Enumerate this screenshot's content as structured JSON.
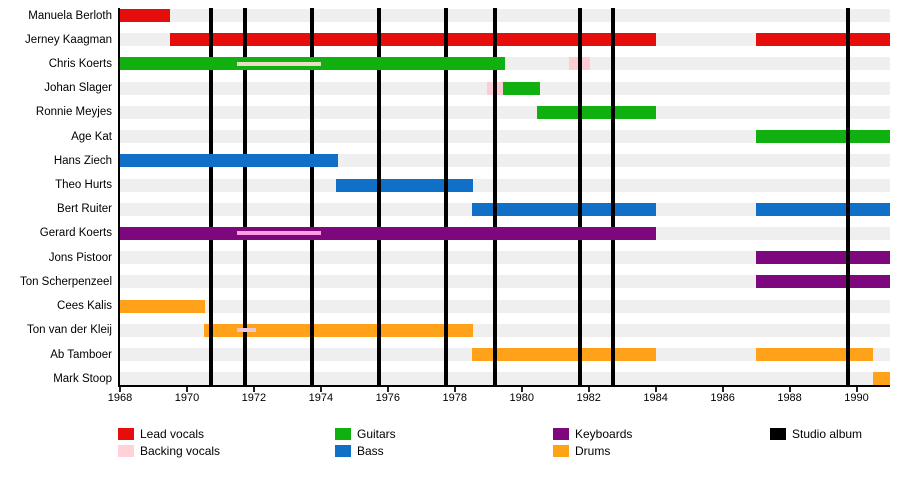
{
  "chart_data": {
    "type": "bar",
    "subtype": "horizontal-timeline-gantt",
    "title": "",
    "grid": "off",
    "legend_position": "bottom",
    "axis": {
      "start_year": 1968,
      "end_year": 1991,
      "tick_years": [
        1968,
        1970,
        1972,
        1974,
        1976,
        1978,
        1980,
        1982,
        1984,
        1986,
        1988,
        1990
      ]
    },
    "colors": {
      "lead": "#e60d0d",
      "backing": "#ffccd6",
      "guitars": "#0fb00f",
      "bass": "#1070c8",
      "keyboards": "#7d077d",
      "drums": "#ffa219",
      "album": "#000000",
      "row_band": "#efefef"
    },
    "members": [
      {
        "name": "Manuela Berloth",
        "bars": [
          {
            "role": "lead",
            "start": 1968,
            "end": 1969.5
          }
        ],
        "stripes": []
      },
      {
        "name": "Jerney Kaagman",
        "bars": [
          {
            "role": "lead",
            "start": 1969.5,
            "end": 1984
          },
          {
            "role": "lead",
            "start": 1987,
            "end": 1991
          }
        ],
        "stripes": []
      },
      {
        "name": "Chris Koerts",
        "bars": [
          {
            "role": "guitars",
            "start": 1968,
            "end": 1979.5,
            "over_line": true
          },
          {
            "role": "backing",
            "start": 1981.4,
            "end": 1982.05,
            "color": "#ffccd6"
          }
        ],
        "stripes": [
          {
            "role": "backing",
            "start": 1971.5,
            "end": 1974,
            "color": "#eed9c2"
          }
        ]
      },
      {
        "name": "Johan Slager",
        "bars": [
          {
            "role": "backing",
            "start": 1978.95,
            "end": 1979.45,
            "color": "#ffccd6"
          },
          {
            "role": "guitars",
            "start": 1979.45,
            "end": 1980.55
          }
        ],
        "stripes": []
      },
      {
        "name": "Ronnie Meyjes",
        "bars": [
          {
            "role": "guitars",
            "start": 1980.45,
            "end": 1984
          }
        ],
        "stripes": []
      },
      {
        "name": "Age Kat",
        "bars": [
          {
            "role": "guitars",
            "start": 1987,
            "end": 1991
          }
        ],
        "stripes": []
      },
      {
        "name": "Hans Ziech",
        "bars": [
          {
            "role": "bass",
            "start": 1968,
            "end": 1974.5,
            "over_line": true
          }
        ],
        "stripes": []
      },
      {
        "name": "Theo Hurts",
        "bars": [
          {
            "role": "bass",
            "start": 1974.45,
            "end": 1978.55
          }
        ],
        "stripes": []
      },
      {
        "name": "Bert Ruiter",
        "bars": [
          {
            "role": "bass",
            "start": 1978.5,
            "end": 1984
          },
          {
            "role": "bass",
            "start": 1987,
            "end": 1991
          }
        ],
        "stripes": []
      },
      {
        "name": "Gerard Koerts",
        "bars": [
          {
            "role": "keyboards",
            "start": 1968,
            "end": 1984,
            "over_line": true
          }
        ],
        "stripes": [
          {
            "role": "backing",
            "start": 1971.5,
            "end": 1974,
            "color": "#ff9de0"
          }
        ]
      },
      {
        "name": "Jons Pistoor",
        "bars": [
          {
            "role": "keyboards",
            "start": 1987,
            "end": 1991
          }
        ],
        "stripes": []
      },
      {
        "name": "Ton Scherpenzeel",
        "bars": [
          {
            "role": "keyboards",
            "start": 1987,
            "end": 1991
          }
        ],
        "stripes": []
      },
      {
        "name": "Cees Kalis",
        "bars": [
          {
            "role": "drums",
            "start": 1968,
            "end": 1970.55
          }
        ],
        "stripes": []
      },
      {
        "name": "Ton van der Kleij",
        "bars": [
          {
            "role": "drums",
            "start": 1970.5,
            "end": 1978.55
          }
        ],
        "stripes": [
          {
            "role": "backing",
            "start": 1971.5,
            "end": 1972.05,
            "color": "#e9c6d8"
          }
        ]
      },
      {
        "name": "Ab Tamboer",
        "bars": [
          {
            "role": "drums",
            "start": 1978.5,
            "end": 1984
          },
          {
            "role": "drums",
            "start": 1987,
            "end": 1990.5
          }
        ],
        "stripes": []
      },
      {
        "name": "Mark Stoop",
        "bars": [
          {
            "role": "drums",
            "start": 1990.5,
            "end": 1991
          }
        ],
        "stripes": []
      }
    ],
    "album_years": [
      1970.72,
      1971.73,
      1973.74,
      1975.74,
      1977.74,
      1979.2,
      1981.75,
      1982.73,
      1989.75
    ],
    "legend": [
      {
        "label": "Lead vocals",
        "color": "#e60d0d",
        "col": 0,
        "row": 0
      },
      {
        "label": "Backing vocals",
        "color": "#ffd1d9",
        "col": 0,
        "row": 1
      },
      {
        "label": "Guitars",
        "color": "#0fb00f",
        "col": 1,
        "row": 0
      },
      {
        "label": "Bass",
        "color": "#1070c8",
        "col": 1,
        "row": 1
      },
      {
        "label": "Keyboards",
        "color": "#7d077d",
        "col": 2,
        "row": 0
      },
      {
        "label": "Drums",
        "color": "#ffa219",
        "col": 2,
        "row": 1
      },
      {
        "label": "Studio album",
        "color": "#000000",
        "col": 3,
        "row": 0
      }
    ]
  }
}
